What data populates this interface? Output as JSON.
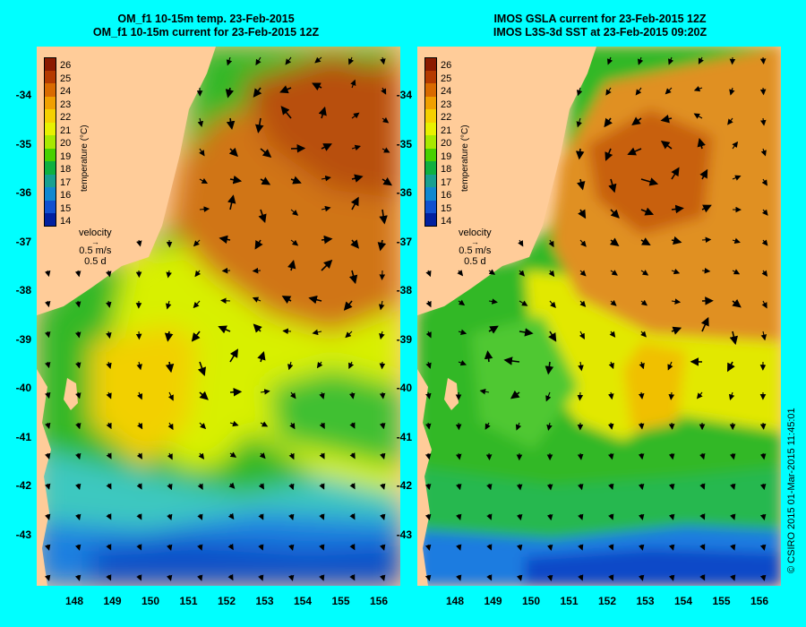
{
  "panels": [
    {
      "title_line1": "OM_f1 10-15m temp. 23-Feb-2015",
      "title_line2": "OM_f1 10-15m current for 23-Feb-2015 12Z"
    },
    {
      "title_line1": "IMOS GSLA current for 23-Feb-2015 12Z",
      "title_line2": "IMOS L3S-3d SST at 23-Feb-2015 09:20Z"
    }
  ],
  "axes": {
    "lat_ticks": [
      "-34",
      "-35",
      "-36",
      "-37",
      "-38",
      "-39",
      "-40",
      "-41",
      "-42",
      "-43"
    ],
    "lon_ticks": [
      "148",
      "149",
      "150",
      "151",
      "152",
      "153",
      "154",
      "155",
      "156"
    ]
  },
  "colorbar": {
    "label": "temperature (°C)",
    "ticks": [
      "26",
      "25",
      "24",
      "23",
      "22",
      "21",
      "20",
      "19",
      "18",
      "17",
      "16",
      "15",
      "14"
    ],
    "colors": [
      "#8b1a00",
      "#b53a00",
      "#d96a00",
      "#f0a000",
      "#f5d000",
      "#e8f000",
      "#a8e800",
      "#48d000",
      "#10b040",
      "#18a090",
      "#1088d0",
      "#1050d0",
      "#0020a0"
    ]
  },
  "velocity_key": {
    "label": "velocity",
    "speed": "0.5 m/s",
    "duration": "0.5 d"
  },
  "credit": "© CSIRO 2015   01-Mar-2015 11:45:01",
  "colors": {
    "background": "#00ffff",
    "land": "#ffcc99",
    "warm": "#cc6a10",
    "mid": "#e6e000",
    "cool": "#38c020",
    "cold": "#1a80e0"
  }
}
